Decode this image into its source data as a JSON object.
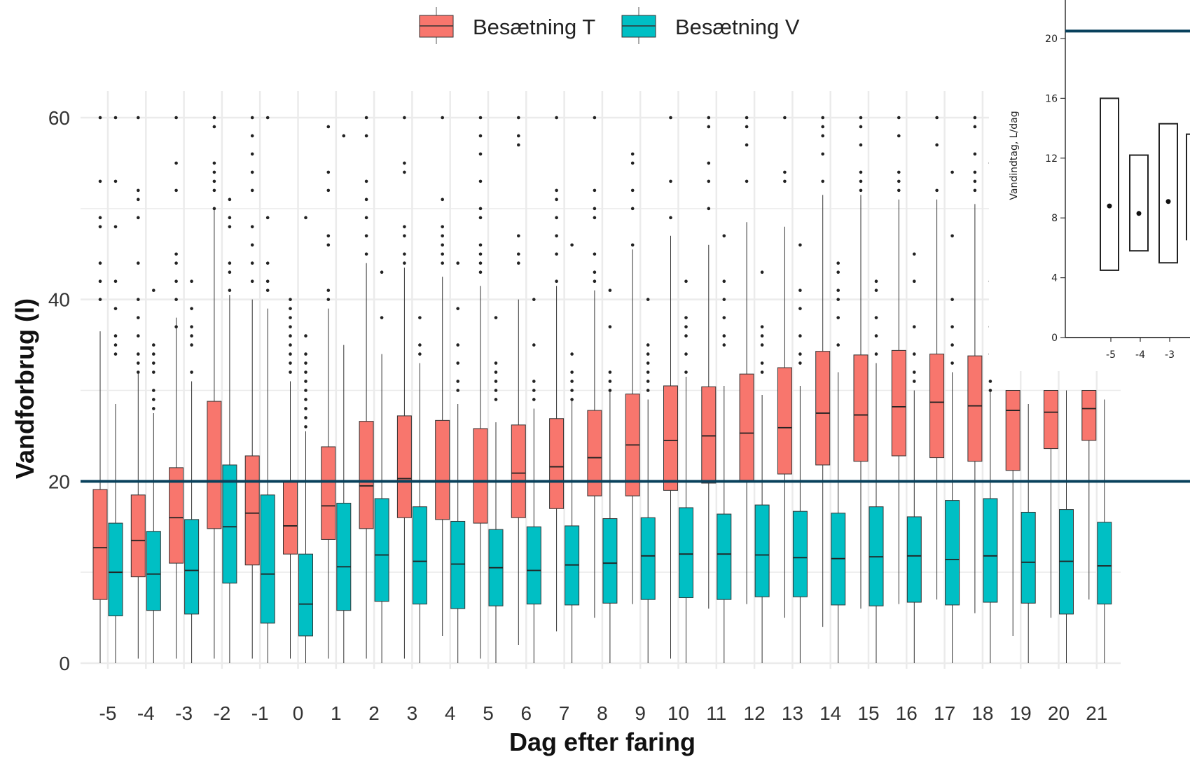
{
  "colors": {
    "series_t": "#F8766D",
    "series_v": "#00BFC4",
    "reference_line": "#08415C",
    "grid": "#EBEBEB"
  },
  "legend": {
    "items": [
      "Besætning T",
      "Besætning V"
    ]
  },
  "chart_data": [
    {
      "type": "box",
      "xlabel": "Dag efter faring",
      "ylabel": "Vandforbrug (l)",
      "categories": [
        "-5",
        "-4",
        "-3",
        "-2",
        "-1",
        "0",
        "1",
        "2",
        "3",
        "4",
        "5",
        "6",
        "7",
        "8",
        "9",
        "10",
        "11",
        "12",
        "13",
        "14",
        "15",
        "16",
        "17",
        "18",
        "19",
        "20",
        "21"
      ],
      "ylim": [
        0,
        60
      ],
      "yticks": [
        "0",
        "20",
        "40",
        "60"
      ],
      "grid": true,
      "legend_position": "top",
      "reference_line_y": 20,
      "series": [
        {
          "name": "Besætning T",
          "q1": [
            7.0,
            9.5,
            11.0,
            14.8,
            10.8,
            12.0,
            13.6,
            14.8,
            16.0,
            15.8,
            15.4,
            16.0,
            17.0,
            18.4,
            18.4,
            19.0,
            19.8,
            20.0,
            20.8,
            21.8,
            22.2,
            22.8,
            22.6,
            22.2,
            21.2,
            23.6,
            24.5
          ],
          "median": [
            12.7,
            13.5,
            16.0,
            20.0,
            16.5,
            15.1,
            17.3,
            19.5,
            20.3,
            20.0,
            20.0,
            20.9,
            21.6,
            22.6,
            24.0,
            24.5,
            25.0,
            25.3,
            25.9,
            27.5,
            27.3,
            28.2,
            28.7,
            28.3,
            27.8,
            27.6,
            28.0
          ],
          "q3": [
            19.1,
            18.5,
            21.5,
            28.8,
            22.8,
            20.0,
            23.8,
            26.6,
            27.2,
            26.7,
            25.8,
            26.2,
            26.9,
            27.8,
            29.6,
            30.5,
            30.4,
            31.8,
            32.5,
            34.3,
            33.9,
            34.4,
            34.0,
            33.8,
            30.0,
            30.0,
            30.0
          ],
          "whisker_low": [
            0,
            0.5,
            0.5,
            0.5,
            0.5,
            0.5,
            0.5,
            0.5,
            0.5,
            3.0,
            0.5,
            2.0,
            3.5,
            5.0,
            6.5,
            0.5,
            6.0,
            6.5,
            5.0,
            4.0,
            6.0,
            6.5,
            7.0,
            5.5,
            3.0,
            5.0,
            7.0
          ],
          "whisker_high": [
            36.5,
            32.0,
            38.0,
            50.0,
            40.0,
            31.0,
            39.0,
            44.0,
            43.5,
            42.5,
            41.5,
            40.0,
            41.5,
            41.0,
            45.5,
            47.0,
            46.0,
            48.5,
            48.0,
            51.5,
            51.5,
            51.0,
            51.0,
            50.5,
            30.0,
            30.0,
            30.0
          ],
          "outliers": [
            [
              40,
              42,
              44,
              48,
              49,
              53,
              60
            ],
            [
              32,
              33,
              34,
              36,
              38,
              40,
              44,
              49,
              51,
              52,
              60
            ],
            [
              37,
              40,
              42,
              44,
              45,
              52,
              55,
              60
            ],
            [
              50,
              52,
              53,
              54,
              55,
              59,
              60
            ],
            [
              42,
              44,
              46,
              48,
              52,
              54,
              56,
              58,
              60
            ],
            [
              32,
              33,
              34,
              35,
              36,
              37,
              38,
              39,
              40
            ],
            [
              40,
              41,
              46,
              47,
              52,
              54,
              59
            ],
            [
              45,
              47,
              49,
              51,
              53,
              58,
              60
            ],
            [
              44,
              45,
              47,
              48,
              54,
              55,
              60
            ],
            [
              44,
              45,
              46,
              47,
              48,
              51,
              60
            ],
            [
              43,
              44,
              45,
              46,
              49,
              50,
              53,
              56,
              58,
              60
            ],
            [
              44,
              45,
              47,
              57,
              58,
              60
            ],
            [
              42,
              45,
              47,
              49,
              51,
              52,
              60
            ],
            [
              42,
              43,
              45,
              49,
              50,
              52,
              60
            ],
            [
              46,
              50,
              52,
              55,
              56
            ],
            [
              49,
              53,
              60
            ],
            [
              50,
              53,
              55,
              59,
              60
            ],
            [
              53,
              57,
              59,
              60
            ],
            [
              53,
              54,
              60
            ],
            [
              53,
              56,
              58,
              59,
              60
            ],
            [
              52,
              53,
              54,
              57,
              59,
              60
            ],
            [
              52,
              53,
              54,
              58,
              60
            ],
            [
              52,
              57,
              60
            ],
            [
              52,
              53,
              54,
              56,
              59,
              60
            ],
            [],
            [],
            []
          ]
        },
        {
          "name": "Besætning V",
          "q1": [
            5.2,
            5.8,
            5.4,
            8.8,
            4.4,
            3.0,
            5.8,
            6.8,
            6.5,
            6.0,
            6.3,
            6.5,
            6.4,
            6.6,
            7.0,
            7.2,
            7.0,
            7.3,
            7.3,
            6.4,
            6.3,
            6.7,
            6.4,
            6.7,
            6.6,
            5.4,
            6.5
          ],
          "median": [
            10.0,
            9.8,
            10.2,
            15.0,
            9.8,
            6.5,
            10.6,
            11.9,
            11.2,
            10.9,
            10.5,
            10.2,
            10.8,
            11.0,
            11.8,
            12.0,
            12.0,
            11.9,
            11.6,
            11.5,
            11.7,
            11.8,
            11.4,
            11.8,
            11.1,
            11.2,
            10.7
          ],
          "q3": [
            15.4,
            14.5,
            15.8,
            21.8,
            18.5,
            12.0,
            17.6,
            18.1,
            17.2,
            15.6,
            14.7,
            15.0,
            15.1,
            15.9,
            16.0,
            17.1,
            16.4,
            17.4,
            16.7,
            16.5,
            17.2,
            16.1,
            17.9,
            18.1,
            16.6,
            16.9,
            15.5
          ],
          "whisker_low": [
            0,
            0,
            0,
            0,
            0,
            0,
            0,
            0,
            0,
            0,
            0,
            0,
            0,
            0,
            0,
            0,
            0,
            0,
            0,
            0,
            0,
            0,
            0,
            0,
            0,
            0,
            0
          ],
          "whisker_high": [
            28.5,
            27.5,
            31.0,
            40.5,
            39.0,
            25.5,
            35.0,
            34.0,
            33.0,
            28.5,
            26.5,
            28.0,
            29.0,
            30.0,
            29.0,
            31.5,
            30.5,
            29.5,
            30.5,
            32.0,
            33.0,
            30.0,
            32.0,
            30.0,
            28.5,
            30.0,
            29.0
          ],
          "outliers": [
            [
              34,
              35,
              36,
              39,
              42,
              48,
              53,
              60
            ],
            [
              28,
              29,
              30,
              32,
              33,
              34,
              35,
              41
            ],
            [
              32,
              35,
              36,
              37,
              39,
              42
            ],
            [
              41,
              43,
              44,
              48,
              49,
              51
            ],
            [
              41,
              42,
              44,
              49,
              60
            ],
            [
              26,
              27,
              28,
              29,
              30,
              31,
              32,
              33,
              34,
              36,
              49
            ],
            [
              58
            ],
            [
              38,
              43
            ],
            [
              34,
              35,
              38
            ],
            [
              30,
              31,
              33,
              35,
              39,
              44
            ],
            [
              29,
              30,
              31,
              32,
              33,
              38
            ],
            [
              29,
              30,
              31,
              35,
              40
            ],
            [
              29,
              30,
              31,
              32,
              34,
              46
            ],
            [
              30,
              31,
              32,
              37,
              41
            ],
            [
              30,
              31,
              32,
              33,
              34,
              35,
              40
            ],
            [
              32,
              34,
              36,
              37,
              38,
              42
            ],
            [
              35,
              36,
              38,
              40,
              42,
              47
            ],
            [
              32,
              33,
              35,
              36,
              37,
              43
            ],
            [
              33,
              34,
              36,
              39,
              41,
              46
            ],
            [
              35,
              38,
              40,
              41,
              43,
              44
            ],
            [
              34,
              36,
              38,
              41,
              42
            ],
            [
              31,
              32,
              34,
              37,
              42,
              45
            ],
            [
              33,
              35,
              37,
              40,
              47,
              54
            ],
            [
              30,
              31,
              34,
              37,
              42,
              55
            ],
            [],
            [],
            []
          ]
        }
      ]
    },
    {
      "type": "box",
      "ylabel": "Vandindtag, L/dag",
      "categories": [
        "-5",
        "-4",
        "-3"
      ],
      "ylim": [
        0,
        22
      ],
      "yticks": [
        "0",
        "4",
        "8",
        "12",
        "16",
        "20"
      ],
      "reference_line_y": 20.5,
      "series": [
        {
          "q1": [
            4.5,
            5.8,
            5.0
          ],
          "q3": [
            16.0,
            12.2,
            14.3
          ],
          "mean": [
            8.8,
            8.3,
            9.1
          ]
        }
      ]
    }
  ]
}
